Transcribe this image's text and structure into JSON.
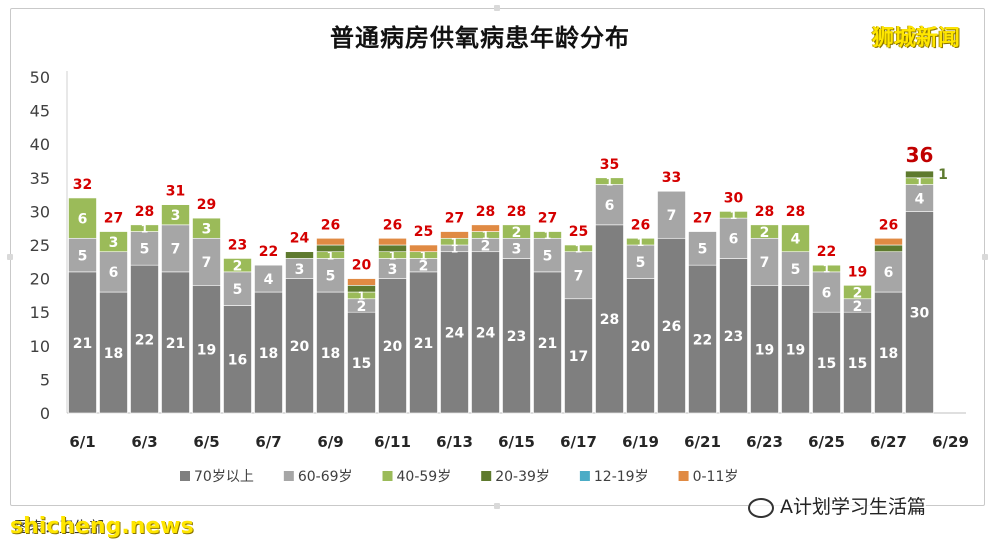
{
  "title": "普通病房供氧病患年龄分布",
  "brand": "狮城新闻",
  "watermark": "A计划学习生活篇",
  "caption": "图表：卫生部",
  "site": "shicheng.news",
  "highlight_total": "36",
  "chart_data": {
    "type": "bar",
    "stacked": true,
    "ylim": [
      0,
      50
    ],
    "yticks": [
      0,
      5,
      10,
      15,
      20,
      25,
      30,
      35,
      40,
      45,
      50
    ],
    "grid": false,
    "legend_position": "bottom",
    "xtick_labels": [
      "6/1",
      "6/3",
      "6/5",
      "6/7",
      "6/9",
      "6/11",
      "6/13",
      "6/15",
      "6/17",
      "6/19",
      "6/21",
      "6/23",
      "6/25",
      "6/27",
      "6/29"
    ],
    "categories": [
      "6/1",
      "6/2",
      "6/3",
      "6/4",
      "6/5",
      "6/6",
      "6/7",
      "6/8",
      "6/9",
      "6/10",
      "6/11",
      "6/12",
      "6/13",
      "6/14",
      "6/15",
      "6/16",
      "6/17",
      "6/18",
      "6/19",
      "6/20",
      "6/21",
      "6/22",
      "6/23",
      "6/24",
      "6/25",
      "6/26",
      "6/27",
      "6/28",
      "6/29"
    ],
    "series": [
      {
        "name": "70岁以上",
        "color": "#7f7f7f",
        "values": [
          21,
          18,
          22,
          21,
          19,
          16,
          18,
          20,
          18,
          15,
          20,
          21,
          24,
          24,
          23,
          21,
          17,
          28,
          20,
          26,
          22,
          23,
          19,
          19,
          15,
          15,
          18,
          30,
          null
        ]
      },
      {
        "name": "60-69岁",
        "color": "#a6a6a6",
        "values": [
          5,
          6,
          5,
          7,
          7,
          5,
          4,
          3,
          5,
          2,
          3,
          2,
          1,
          2,
          3,
          5,
          7,
          6,
          5,
          7,
          5,
          6,
          7,
          5,
          6,
          2,
          6,
          4,
          null
        ]
      },
      {
        "name": "40-59岁",
        "color": "#9bbb59",
        "values": [
          6,
          3,
          1,
          3,
          3,
          2,
          0,
          0,
          1,
          1,
          1,
          1,
          1,
          1,
          2,
          1,
          1,
          1,
          1,
          0,
          0,
          1,
          2,
          4,
          1,
          2,
          0,
          1,
          null
        ]
      },
      {
        "name": "20-39岁",
        "color": "#5e7a2e",
        "values": [
          0,
          0,
          0,
          0,
          0,
          0,
          0,
          1,
          1,
          1,
          1,
          0,
          0,
          0,
          0,
          0,
          0,
          0,
          0,
          0,
          0,
          0,
          0,
          0,
          0,
          0,
          1,
          1,
          null
        ]
      },
      {
        "name": "12-19岁",
        "color": "#4bacc6",
        "values": [
          0,
          0,
          0,
          0,
          0,
          0,
          0,
          0,
          0,
          0,
          0,
          0,
          0,
          0,
          0,
          0,
          0,
          0,
          0,
          0,
          0,
          0,
          0,
          0,
          0,
          0,
          0,
          0,
          null
        ]
      },
      {
        "name": "0-11岁",
        "color": "#e08a43",
        "values": [
          0,
          0,
          0,
          0,
          0,
          0,
          0,
          0,
          1,
          1,
          1,
          1,
          1,
          1,
          0,
          0,
          0,
          0,
          0,
          0,
          0,
          0,
          0,
          0,
          0,
          0,
          1,
          0,
          null
        ]
      }
    ],
    "totals": [
      32,
      27,
      28,
      31,
      29,
      23,
      22,
      24,
      26,
      20,
      26,
      25,
      27,
      28,
      28,
      27,
      25,
      35,
      26,
      33,
      27,
      30,
      28,
      28,
      22,
      19,
      26,
      36,
      null
    ],
    "label_series": [
      "70岁以上",
      "60-69岁",
      "40-59岁"
    ],
    "extra_label": {
      "category": "6/28",
      "text": "1"
    },
    "total_color": "#d40000",
    "highlight_color": "#c00000"
  }
}
